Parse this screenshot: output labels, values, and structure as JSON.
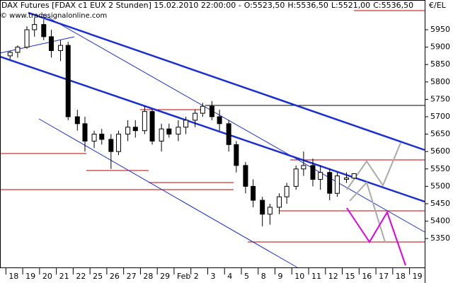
{
  "chart_data": {
    "type": "candlestick",
    "header": {
      "instrument": "DAX Futures [FDAX c1 EUX  2 Stunden] 15.02.2010 22:00:00 -",
      "open": "O:5523,50",
      "high": "H:5536,50",
      "low": "L:5521,00",
      "close": "C:5536,50"
    },
    "copyright": "© www.tradesignalonline.com",
    "y_axis_label": "€/EL",
    "x": [
      0.25,
      0.7,
      1.25,
      1.7,
      2.25,
      2.7,
      3.25,
      3.7,
      4.25,
      4.7,
      5.25,
      5.7,
      6.25,
      6.7,
      7.25,
      7.7,
      8.25,
      8.7,
      9.25,
      9.7,
      10.25,
      10.7,
      11.25,
      11.7,
      12.25,
      12.7,
      13.25,
      13.7,
      14.25,
      14.7,
      15.25,
      15.7,
      16.25,
      16.7,
      17.25,
      17.7,
      18.25,
      18.7,
      19.25,
      19.7,
      20.25,
      20.7
    ],
    "open": [
      5875,
      5885,
      5900,
      5950,
      5965,
      5930,
      5890,
      5905,
      5700,
      5680,
      5630,
      5650,
      5635,
      5600,
      5650,
      5670,
      5660,
      5715,
      5630,
      5665,
      5650,
      5670,
      5690,
      5710,
      5730,
      5700,
      5680,
      5620,
      5560,
      5500,
      5460,
      5420,
      5440,
      5470,
      5500,
      5550,
      5560,
      5520,
      5540,
      5480,
      5520,
      5523.5
    ],
    "high": [
      5890,
      5905,
      5960,
      5985,
      5980,
      5950,
      5920,
      5915,
      5720,
      5700,
      5660,
      5665,
      5650,
      5660,
      5690,
      5690,
      5730,
      5720,
      5680,
      5680,
      5690,
      5700,
      5720,
      5740,
      5745,
      5720,
      5690,
      5630,
      5570,
      5520,
      5470,
      5450,
      5480,
      5510,
      5560,
      5600,
      5580,
      5560,
      5550,
      5540,
      5540,
      5536.5
    ],
    "low": [
      5865,
      5870,
      5895,
      5930,
      5920,
      5870,
      5860,
      5690,
      5660,
      5600,
      5610,
      5620,
      5550,
      5590,
      5630,
      5640,
      5650,
      5620,
      5600,
      5640,
      5630,
      5650,
      5670,
      5700,
      5690,
      5660,
      5600,
      5540,
      5480,
      5440,
      5385,
      5390,
      5420,
      5450,
      5490,
      5530,
      5500,
      5490,
      5460,
      5470,
      5510,
      5521
    ],
    "close": [
      5885,
      5900,
      5950,
      5965,
      5930,
      5890,
      5905,
      5700,
      5680,
      5630,
      5650,
      5635,
      5600,
      5650,
      5670,
      5660,
      5715,
      5630,
      5665,
      5650,
      5670,
      5690,
      5710,
      5730,
      5700,
      5680,
      5620,
      5560,
      5500,
      5460,
      5420,
      5440,
      5470,
      5500,
      5550,
      5560,
      5520,
      5540,
      5480,
      5530,
      5524,
      5536.5
    ],
    "up_color": "#ffffff",
    "down_color": "#000000",
    "xlim": [
      -0.35,
      24.9
    ],
    "xticks": [
      {
        "value": 0,
        "label": "18"
      },
      {
        "value": 1,
        "label": "19"
      },
      {
        "value": 2,
        "label": "20"
      },
      {
        "value": 3,
        "label": "21"
      },
      {
        "value": 4,
        "label": "22"
      },
      {
        "value": 5,
        "label": "25"
      },
      {
        "value": 6,
        "label": "26"
      },
      {
        "value": 7,
        "label": "27"
      },
      {
        "value": 8,
        "label": "28"
      },
      {
        "value": 9,
        "label": "29"
      },
      {
        "value": 10,
        "label": "Feb"
      },
      {
        "value": 11,
        "label": "2"
      },
      {
        "value": 12,
        "label": "3"
      },
      {
        "value": 13,
        "label": "4"
      },
      {
        "value": 14,
        "label": "5"
      },
      {
        "value": 15,
        "label": "8"
      },
      {
        "value": 16,
        "label": "9"
      },
      {
        "value": 17,
        "label": "10"
      },
      {
        "value": 18,
        "label": "11"
      },
      {
        "value": 19,
        "label": "12"
      },
      {
        "value": 20,
        "label": "15"
      },
      {
        "value": 21,
        "label": "16"
      },
      {
        "value": 22,
        "label": "17"
      },
      {
        "value": 23,
        "label": "18"
      },
      {
        "value": 24,
        "label": "19"
      }
    ],
    "ylim": [
      5267,
      6009
    ],
    "yticks": [
      5350,
      5400,
      5450,
      5500,
      5550,
      5600,
      5650,
      5700,
      5750,
      5800,
      5850,
      5900,
      5950
    ]
  }
}
